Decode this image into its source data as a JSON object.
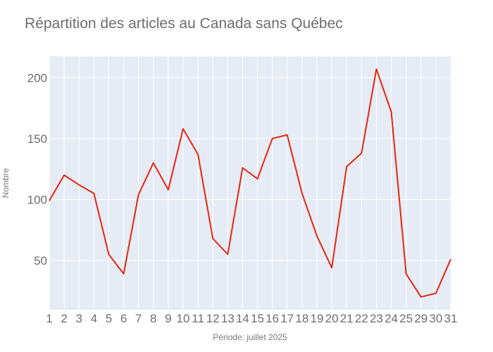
{
  "chart_data": {
    "type": "line",
    "title": "Répartition des articles au Canada sans Québec",
    "xlabel": "Période: juillet 2025",
    "ylabel": "Nombre",
    "x": [
      "1",
      "2",
      "3",
      "4",
      "5",
      "6",
      "7",
      "8",
      "9",
      "10",
      "11",
      "12",
      "13",
      "14",
      "15",
      "16",
      "17",
      "18",
      "19",
      "20",
      "21",
      "22",
      "23",
      "24",
      "25",
      "29",
      "30",
      "31"
    ],
    "series": [
      {
        "values": [
          99,
          120,
          112,
          105,
          55,
          39,
          104,
          130,
          108,
          158,
          137,
          68,
          55,
          126,
          117,
          150,
          153,
          105,
          70,
          44,
          127,
          138,
          207,
          172,
          39,
          20,
          23,
          51
        ]
      }
    ],
    "yticks": [
      50,
      100,
      150,
      200
    ],
    "ylim": [
      9.5,
      217.5
    ],
    "grid": true,
    "legend": "none",
    "colors": {
      "line": "#e8250f",
      "plot_bg": "#e5ecf6",
      "grid": "#ffffff"
    }
  }
}
